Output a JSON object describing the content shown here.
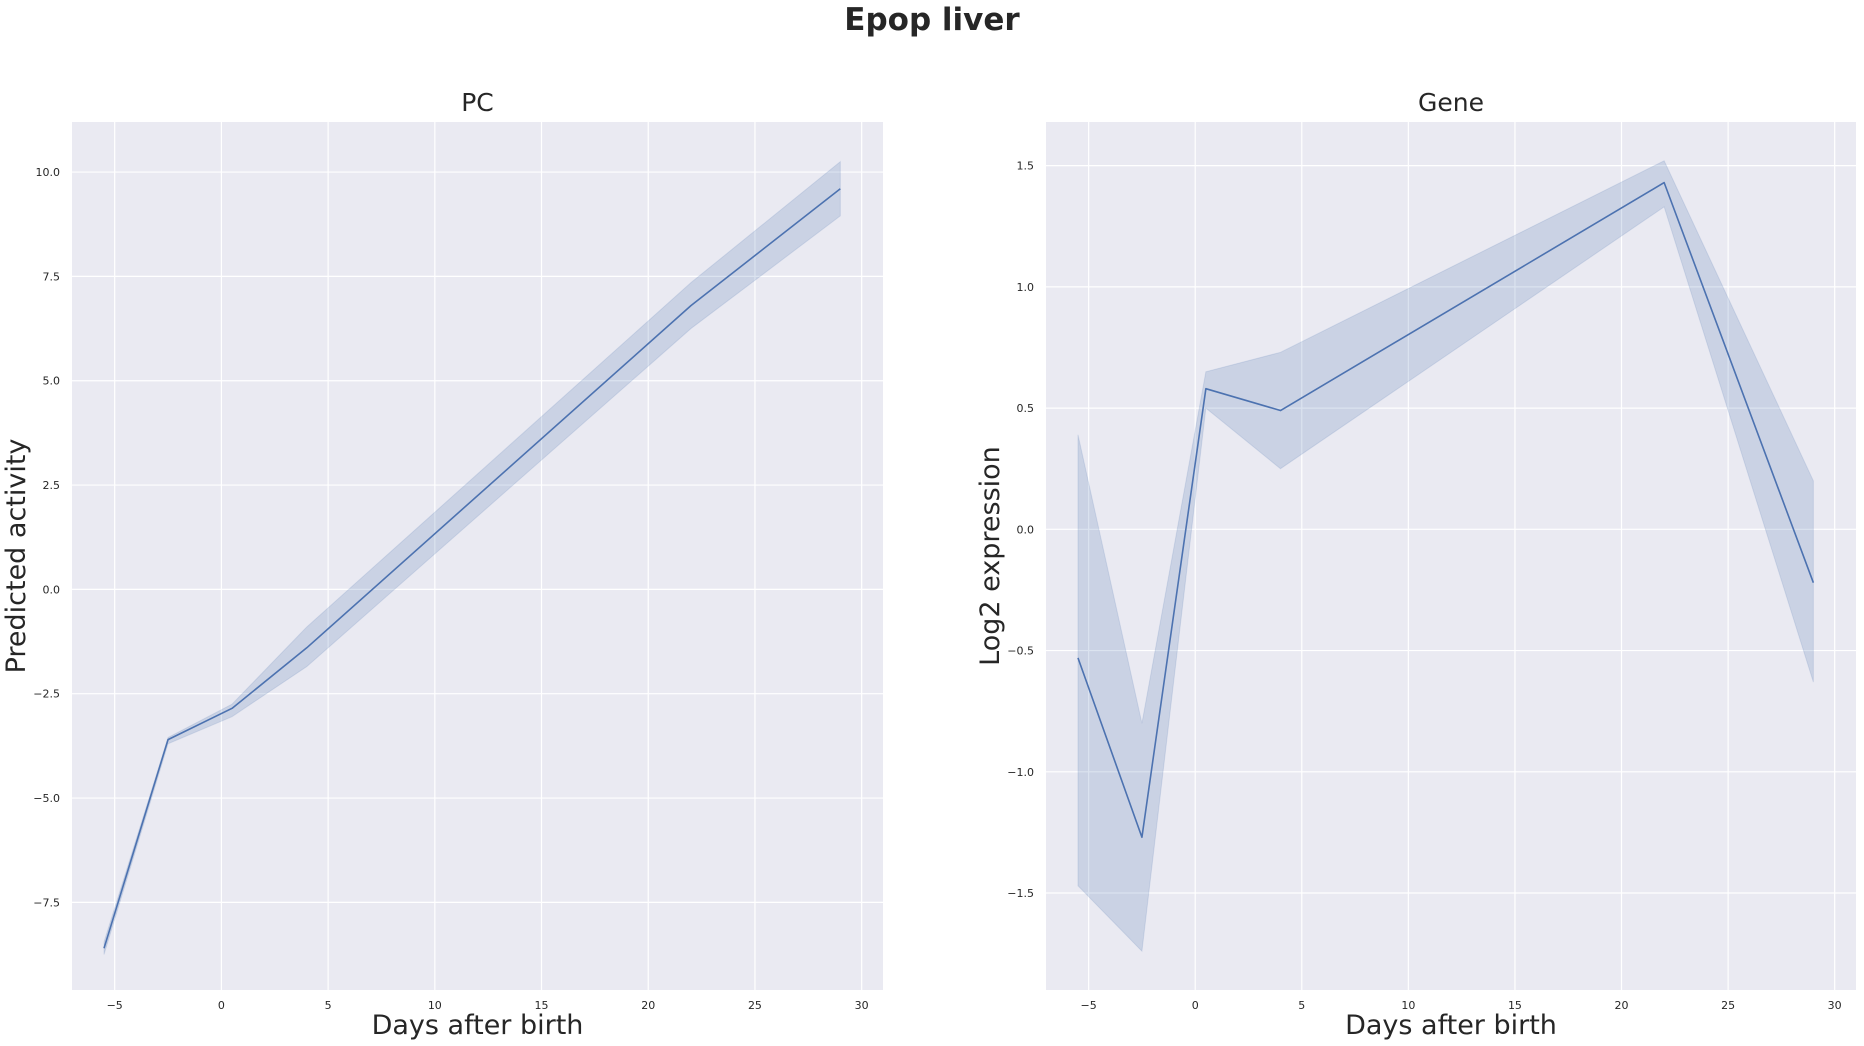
{
  "figure": {
    "title": "Epop liver"
  },
  "chart_data": [
    {
      "type": "line",
      "title": "PC",
      "xlabel": "Days after birth",
      "ylabel": "Predicted activity",
      "xlim": [
        -7,
        31
      ],
      "ylim": [
        -9.6,
        11.2
      ],
      "xticks": [
        -5,
        0,
        5,
        10,
        15,
        20,
        25,
        30
      ],
      "yticks": [
        -7.5,
        -5.0,
        -2.5,
        0.0,
        2.5,
        5.0,
        7.5,
        10.0
      ],
      "ytick_labels": [
        "−7.5",
        "−5.0",
        "−2.5",
        "0.0",
        "2.5",
        "5.0",
        "7.5",
        "10.0"
      ],
      "xtick_labels": [
        "−5",
        "0",
        "5",
        "10",
        "15",
        "20",
        "25",
        "30"
      ],
      "grid": true,
      "series": [
        {
          "x": [
            -5.5,
            -2.5,
            0.5,
            4,
            22,
            29
          ],
          "y": [
            -8.6,
            -3.6,
            -2.85,
            -1.4,
            6.8,
            9.6
          ],
          "ci_low": [
            -8.75,
            -3.7,
            -3.05,
            -1.85,
            6.25,
            8.95
          ],
          "ci_high": [
            -8.45,
            -3.55,
            -2.75,
            -0.9,
            7.35,
            10.25
          ],
          "color": "#4c72b0"
        }
      ]
    },
    {
      "type": "line",
      "title": "Gene",
      "xlabel": "Days after birth",
      "ylabel": "Log2 expression",
      "xlim": [
        -7,
        31
      ],
      "ylim": [
        -1.9,
        1.68
      ],
      "xticks": [
        -5,
        0,
        5,
        10,
        15,
        20,
        25,
        30
      ],
      "yticks": [
        -1.5,
        -1.0,
        -0.5,
        0.0,
        0.5,
        1.0,
        1.5
      ],
      "ytick_labels": [
        "−1.5",
        "−1.0",
        "−0.5",
        "0.0",
        "0.5",
        "1.0",
        "1.5"
      ],
      "xtick_labels": [
        "−5",
        "0",
        "5",
        "10",
        "15",
        "20",
        "25",
        "30"
      ],
      "grid": true,
      "series": [
        {
          "x": [
            -5.5,
            -2.5,
            0.5,
            4,
            22,
            29
          ],
          "y": [
            -0.53,
            -1.27,
            0.58,
            0.49,
            1.43,
            -0.22
          ],
          "ci_low": [
            -1.47,
            -1.74,
            0.5,
            0.25,
            1.33,
            -0.63
          ],
          "ci_high": [
            0.39,
            -0.8,
            0.65,
            0.73,
            1.52,
            0.2
          ],
          "color": "#4c72b0"
        }
      ]
    }
  ]
}
